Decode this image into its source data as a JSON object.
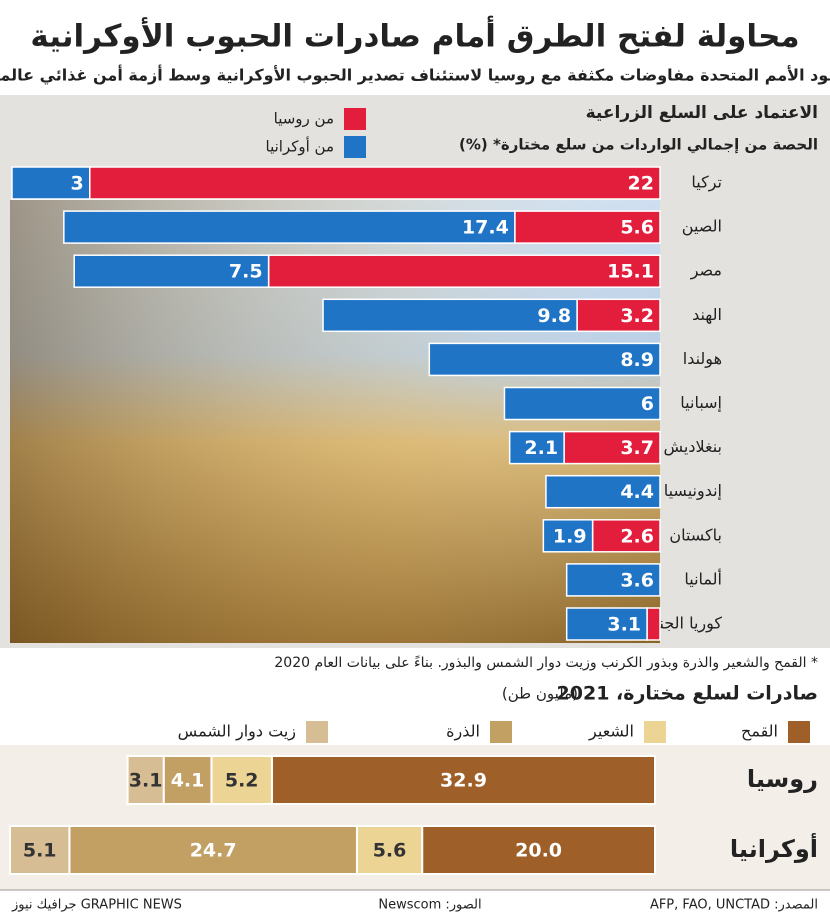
{
  "title": "محاولة لفتح الطرق أمام صادرات الحبوب الأوكرانية",
  "subtitle": "تقود الأمم المتحدة مفاوضات مكثفة مع روسيا لاستئناف تصدير الحبوب الأوكرانية وسط أزمة أمن غذائي عالمية",
  "footnote": "* القمح والشعير والذرة وبذور الكرنب وزيت دوار الشمس والبذور. بناءً على بيانات العام 2020",
  "source": "المصدر: AFP, FAO, UNCTAD",
  "photo_credit": "الصور: Newscom",
  "brand": "GRAPHIC NEWS جرافيك نيوز",
  "chart_data": [
    {
      "type": "bar",
      "orientation": "horizontal",
      "stacked": true,
      "title": "الاعتماد على السلع الزراعية",
      "subtitle": "الحصة من إجمالي الواردات من سلع مختارة* (%)",
      "categories": [
        "تركيا",
        "الصين",
        "مصر",
        "الهند",
        "هولندا",
        "إسبانيا",
        "بنغلاديش",
        "إندونيسيا",
        "باكستان",
        "ألمانيا",
        "كوريا الجنوبية"
      ],
      "series": [
        {
          "name": "من روسيا",
          "color": "#e31e3c",
          "values": [
            22,
            5.6,
            15.1,
            3.2,
            null,
            null,
            3.7,
            null,
            2.6,
            null,
            0.5
          ]
        },
        {
          "name": "من أوكرانيا",
          "color": "#1f74c6",
          "values": [
            3,
            17.4,
            7.5,
            9.8,
            8.9,
            6,
            2.1,
            4.4,
            1.9,
            3.6,
            3.1
          ]
        }
      ]
    },
    {
      "type": "bar",
      "orientation": "horizontal",
      "stacked": true,
      "title": "صادرات لسلع مختارة، 2021",
      "unit": "(مليون طن)",
      "categories": [
        "روسيا",
        "أوكرانيا"
      ],
      "series": [
        {
          "name": "القمح",
          "color": "#9e5f28",
          "values": [
            32.9,
            20.0
          ],
          "value_labels": [
            "32.9",
            "20.0"
          ]
        },
        {
          "name": "الشعير",
          "color": "#ecd594",
          "values": [
            5.2,
            5.6
          ]
        },
        {
          "name": "الذرة",
          "color": "#c2a063",
          "values": [
            4.1,
            24.7
          ]
        },
        {
          "name": "زيت دوار الشمس",
          "color": "#d6bd93",
          "values": [
            3.1,
            5.1
          ]
        }
      ]
    }
  ]
}
